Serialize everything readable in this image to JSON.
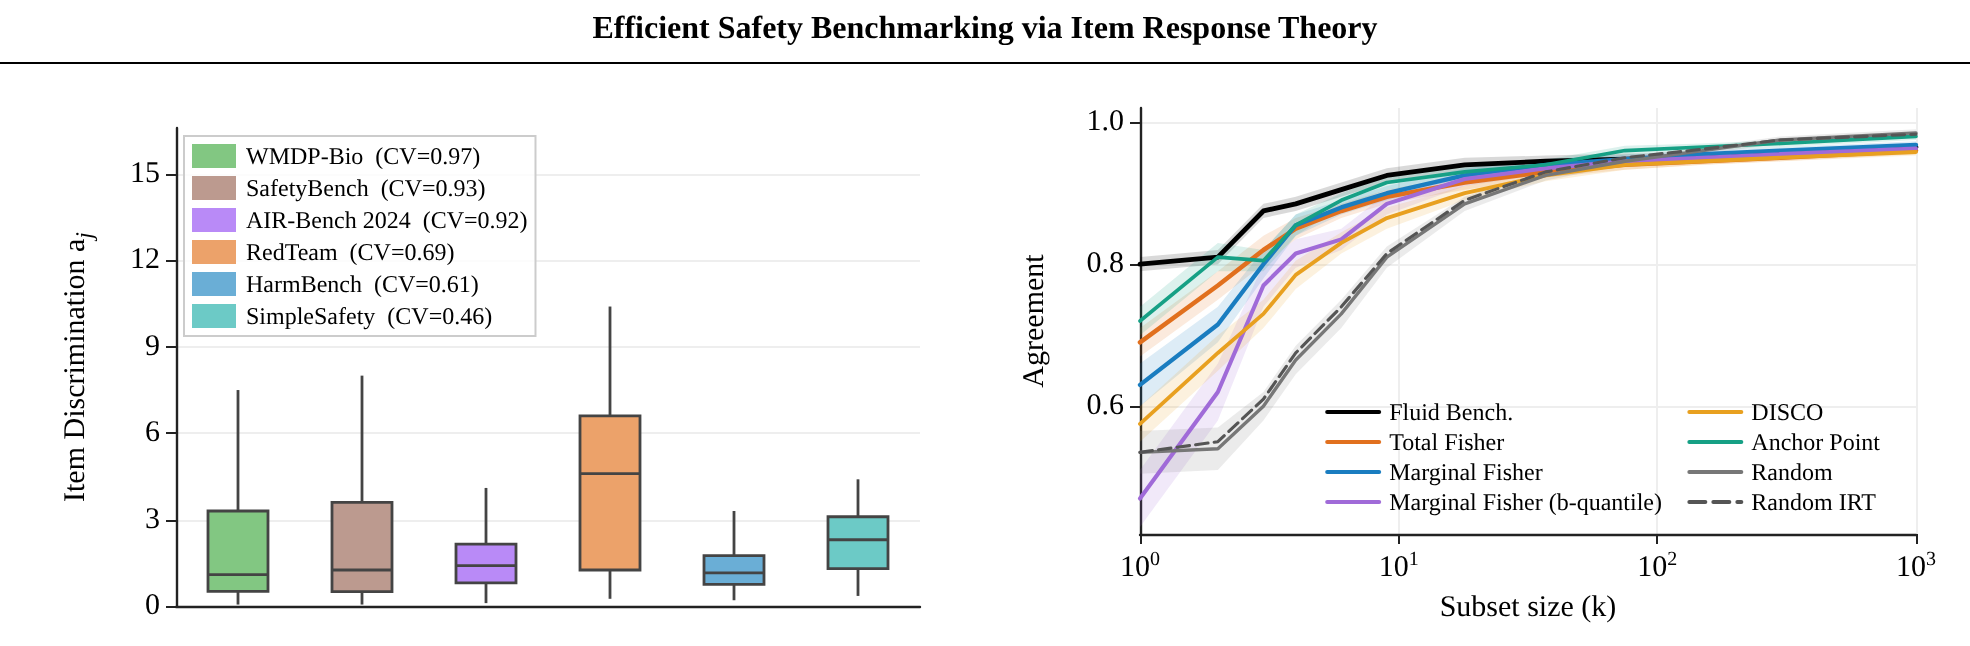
{
  "chart_data": [
    {
      "type": "box",
      "title": "Efficient Safety Benchmarking via Item Response Theory",
      "ylabel": "Item Discrimination a$_{j}$",
      "categories": [
        null,
        null,
        null,
        null,
        null,
        null
      ],
      "ylim": [
        0,
        16.6
      ],
      "yticks": [
        0,
        3,
        6,
        9,
        12,
        15
      ],
      "grid": "y",
      "legend": "top left",
      "tick_labels": "y",
      "series": [
        {
          "name": "WMDP-Bio  (CV=0.97)",
          "color": "#82c782",
          "boxes": [
            {
              "low": 0.05,
              "q1": 0.51,
              "median": 1.09,
              "q3": 3.3,
              "high": 7.5
            },
            null,
            null,
            null,
            null,
            null
          ]
        },
        {
          "name": "SafetyBench  (CV=0.93)",
          "color": "#bc9a8f",
          "boxes": [
            null,
            {
              "low": 0.05,
              "q1": 0.5,
              "median": 1.25,
              "q3": 3.6,
              "high": 8
            },
            null,
            null,
            null,
            null
          ]
        },
        {
          "name": "AIR-Bench 2024  (CV=0.92)",
          "color": "#b98af7",
          "boxes": [
            null,
            null,
            {
              "low": 0.1,
              "q1": 0.8,
              "median": 1.4,
              "q3": 2.15,
              "high": 4.1
            },
            null,
            null,
            null
          ]
        },
        {
          "name": "RedTeam  (CV=0.69)",
          "color": "#eca26a",
          "boxes": [
            null,
            null,
            null,
            {
              "low": 0.25,
              "q1": 1.25,
              "median": 4.6,
              "q3": 6.6,
              "high": 10.4
            },
            null,
            null
          ]
        },
        {
          "name": "HarmBench  (CV=0.61)",
          "color": "#6aaed6",
          "boxes": [
            null,
            null,
            null,
            null,
            {
              "low": 0.2,
              "q1": 0.75,
              "median": 1.15,
              "q3": 1.75,
              "high": 3.3
            },
            null
          ]
        },
        {
          "name": "SimpleSafety  (CV=0.46)",
          "color": "#6ccac6",
          "boxes": [
            null,
            null,
            null,
            null,
            null,
            {
              "low": 0.35,
              "q1": 1.3,
              "median": 2.3,
              "q3": 3.1,
              "high": 4.4
            }
          ]
        }
      ]
    },
    {
      "type": "line",
      "xlabel": "Subset size (k)",
      "ylabel": "Agreement",
      "log": "x",
      "xlim": [
        1,
        1000
      ],
      "xticks": [
        {
          "value": 1,
          "label": "10$^{0}$"
        },
        {
          "value": 10,
          "label": "10$^{1}$"
        },
        {
          "value": 100,
          "label": "10$^{2}$"
        },
        {
          "value": 1000,
          "label": "10$^{3}$"
        }
      ],
      "ylim": [
        0.42,
        1.02
      ],
      "yticks": [
        {
          "value": 0.6,
          "label": "0.6"
        },
        {
          "value": 0.8,
          "label": "0.8"
        },
        {
          "value": 1.0,
          "label": "1.0"
        }
      ],
      "grid": true,
      "legend": "bottom right",
      "marker": "none",
      "x": [
        1,
        2,
        3,
        4,
        6,
        9,
        18,
        37,
        75,
        150,
        300,
        1000
      ],
      "series": [
        {
          "name": "Fluid Bench.",
          "color": "#000000",
          "values": [
            0.8,
            0.81,
            0.875,
            0.885,
            0.905,
            0.925,
            0.94,
            0.945,
            0.948,
            0.95,
            0.955,
            0.965
          ],
          "lower": [
            0.79,
            0.8,
            0.865,
            0.875,
            0.895,
            0.915,
            0.93,
            0.937,
            0.94,
            0.944,
            0.95,
            0.96
          ],
          "upper": [
            0.81,
            0.82,
            0.885,
            0.895,
            0.915,
            0.935,
            0.95,
            0.953,
            0.956,
            0.956,
            0.96,
            0.97
          ]
        },
        {
          "name": "Total Fisher",
          "color": "#e1701e",
          "values": [
            0.69,
            0.77,
            0.82,
            0.85,
            0.875,
            0.895,
            0.915,
            0.93,
            0.94,
            0.945,
            0.95,
            0.96
          ],
          "lower": [
            0.67,
            0.75,
            0.8,
            0.835,
            0.865,
            0.885,
            0.905,
            0.922,
            0.933,
            0.94,
            0.945,
            0.955
          ],
          "upper": [
            0.71,
            0.79,
            0.84,
            0.865,
            0.885,
            0.905,
            0.925,
            0.938,
            0.947,
            0.95,
            0.955,
            0.965
          ]
        },
        {
          "name": "Marginal Fisher",
          "color": "#1a7dc0",
          "values": [
            0.63,
            0.715,
            0.8,
            0.855,
            0.88,
            0.9,
            0.925,
            0.94,
            0.948,
            0.955,
            0.96,
            0.968
          ],
          "lower": [
            0.6,
            0.69,
            0.78,
            0.84,
            0.87,
            0.89,
            0.915,
            0.932,
            0.942,
            0.95,
            0.955,
            0.963
          ],
          "upper": [
            0.66,
            0.74,
            0.82,
            0.87,
            0.89,
            0.91,
            0.935,
            0.948,
            0.954,
            0.96,
            0.965,
            0.973
          ]
        },
        {
          "name": "Marginal Fisher (b-quantile)",
          "color": "#a06bd8",
          "values": [
            0.47,
            0.62,
            0.77,
            0.815,
            0.835,
            0.885,
            0.92,
            0.935,
            0.945,
            0.95,
            0.955,
            0.963
          ],
          "lower": [
            0.43,
            0.58,
            0.74,
            0.795,
            0.82,
            0.87,
            0.91,
            0.927,
            0.938,
            0.944,
            0.95,
            0.958
          ],
          "upper": [
            0.51,
            0.66,
            0.8,
            0.835,
            0.85,
            0.9,
            0.93,
            0.943,
            0.952,
            0.956,
            0.96,
            0.968
          ]
        },
        {
          "name": "DISCO",
          "color": "#e8a020",
          "values": [
            0.575,
            0.675,
            0.73,
            0.785,
            0.83,
            0.865,
            0.9,
            0.925,
            0.94,
            0.945,
            0.95,
            0.958
          ],
          "lower": [
            0.55,
            0.65,
            0.71,
            0.765,
            0.815,
            0.85,
            0.89,
            0.917,
            0.933,
            0.94,
            0.945,
            0.953
          ],
          "upper": [
            0.6,
            0.7,
            0.75,
            0.805,
            0.845,
            0.88,
            0.91,
            0.933,
            0.947,
            0.95,
            0.955,
            0.963
          ]
        },
        {
          "name": "Anchor Point",
          "color": "#16a085",
          "values": [
            0.72,
            0.81,
            0.805,
            0.855,
            0.89,
            0.915,
            0.93,
            0.94,
            0.96,
            0.965,
            0.97,
            0.98
          ],
          "lower": [
            0.7,
            0.79,
            0.79,
            0.84,
            0.88,
            0.905,
            0.92,
            0.933,
            0.953,
            0.96,
            0.965,
            0.975
          ],
          "upper": [
            0.74,
            0.83,
            0.82,
            0.87,
            0.9,
            0.925,
            0.94,
            0.947,
            0.967,
            0.97,
            0.975,
            0.985
          ]
        },
        {
          "name": "Random",
          "color": "#777777",
          "values": [
            0.535,
            0.54,
            0.6,
            0.665,
            0.73,
            0.81,
            0.885,
            0.925,
            0.945,
            0.96,
            0.975,
            0.985
          ],
          "lower": [
            0.505,
            0.51,
            0.58,
            0.645,
            0.71,
            0.795,
            0.875,
            0.918,
            0.94,
            0.955,
            0.97,
            0.98
          ],
          "upper": [
            0.565,
            0.57,
            0.62,
            0.685,
            0.75,
            0.825,
            0.895,
            0.932,
            0.95,
            0.965,
            0.98,
            0.99
          ]
        },
        {
          "name": "Random IRT",
          "color": "#555555",
          "line_style": "dashed",
          "values": [
            0.535,
            0.55,
            0.61,
            0.675,
            0.74,
            0.815,
            0.89,
            0.93,
            0.95,
            0.962,
            0.975,
            0.983
          ]
        }
      ]
    }
  ]
}
